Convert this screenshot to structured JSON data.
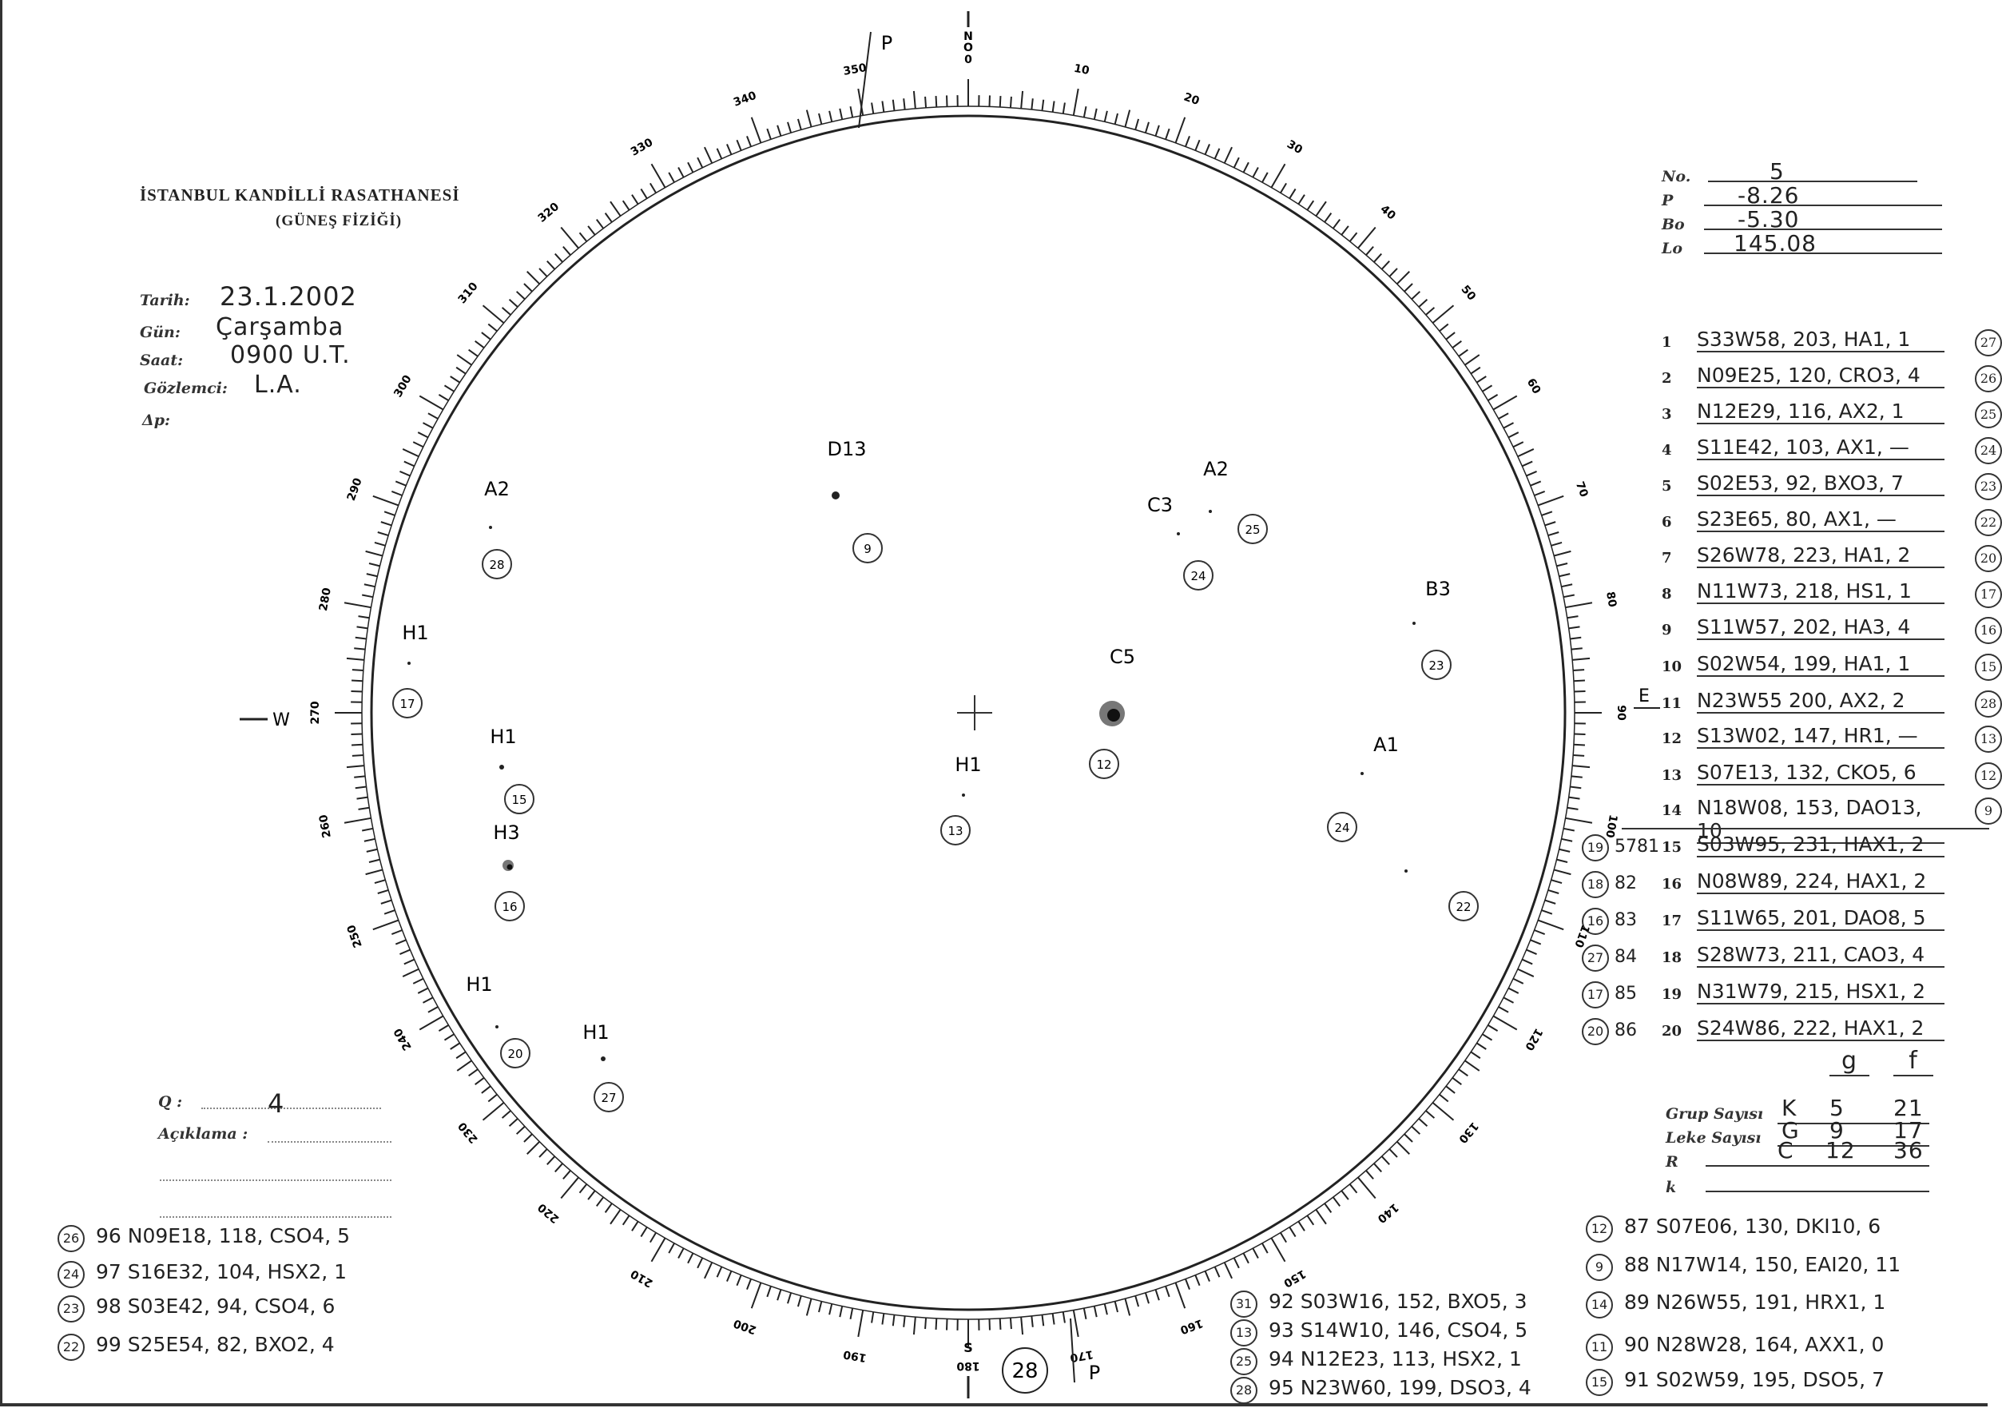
{
  "header": {
    "title": "İSTANBUL KANDİLLİ RASATHANESİ",
    "subtitle": "(GÜNEŞ FİZİĞİ)"
  },
  "observation": {
    "date_label": "Tarih:",
    "date": "23.1.2002",
    "day_label": "Gün:",
    "day": "Çarşamba",
    "time_label": "Saat:",
    "time": "0900 U.T.",
    "observer_label": "Gözlemci:",
    "observer": "L.A.",
    "dp_label": "Δp:"
  },
  "params": {
    "no_label": "No.",
    "no": "5",
    "p_label": "P",
    "p": "-8.26",
    "bo_label": "Bo",
    "bo": "-5.30",
    "lo_label": "Lo",
    "lo": "145.08"
  },
  "groups": [
    {
      "n": "1",
      "text": "S33W58, 203, HA1, 1",
      "circle": "27"
    },
    {
      "n": "2",
      "text": "N09E25, 120, CRO3, 4",
      "circle": "26"
    },
    {
      "n": "3",
      "text": "N12E29, 116, AX2, 1",
      "circle": "25"
    },
    {
      "n": "4",
      "text": "S11E42, 103, AX1, —",
      "circle": "24"
    },
    {
      "n": "5",
      "text": "S02E53, 92, BXO3, 7",
      "circle": "23"
    },
    {
      "n": "6",
      "text": "S23E65, 80, AX1, —",
      "circle": "22"
    },
    {
      "n": "7",
      "text": "S26W78, 223, HA1, 2",
      "circle": "20"
    },
    {
      "n": "8",
      "text": "N11W73, 218, HS1, 1",
      "circle": "17"
    },
    {
      "n": "9",
      "text": "S11W57, 202, HA3, 4",
      "circle": "16"
    },
    {
      "n": "10",
      "text": "S02W54, 199, HA1, 1",
      "circle": "15"
    },
    {
      "n": "11",
      "text": "N23W55 200, AX2, 2",
      "circle": "28"
    },
    {
      "n": "12",
      "text": "S13W02, 147, HR1, —",
      "circle": "13"
    },
    {
      "n": "13",
      "text": "S07E13, 132, CKO5, 6",
      "circle": "12"
    },
    {
      "n": "14",
      "text": "N18W08, 153, DAO13, 10",
      "circle": "9"
    },
    {
      "n": "15",
      "text": "S03W95, 231, HAX1, 2",
      "pre_circle": "19",
      "pre": "5781"
    },
    {
      "n": "16",
      "text": "N08W89, 224, HAX1, 2",
      "pre_circle": "18",
      "pre": "82"
    },
    {
      "n": "17",
      "text": "S11W65, 201, DAO8, 5",
      "pre_circle": "16",
      "pre": "83"
    },
    {
      "n": "18",
      "text": "S28W73, 211, CAO3, 4",
      "pre_circle": "27",
      "pre": "84"
    },
    {
      "n": "19",
      "text": "N31W79, 215, HSX1, 2",
      "pre_circle": "17",
      "pre": "85"
    },
    {
      "n": "20",
      "text": "S24W86, 222, HAX1, 2",
      "pre_circle": "20",
      "pre": "86"
    }
  ],
  "counts": {
    "col_g": "g",
    "col_f": "f",
    "group_label": "Grup Sayısı",
    "group_letter": "K",
    "group_g": "5",
    "group_f": "21",
    "spot_label": "Leke Sayısı",
    "spot_letter": "G",
    "spot_g": "9",
    "spot_f": "17",
    "r_label": "R",
    "r_letter": "C",
    "r_g": "12",
    "r_f": "36",
    "k_label": "k"
  },
  "quality": {
    "q_label": "Q :",
    "q": "4",
    "remarks_label": "Açıklama :"
  },
  "notes_left": [
    {
      "circle": "26",
      "text": "96 N09E18, 118, CSO4, 5"
    },
    {
      "circle": "24",
      "text": "97 S16E32, 104, HSX2, 1"
    },
    {
      "circle": "23",
      "text": "98 S03E42, 94, CSO4, 6"
    },
    {
      "circle": "22",
      "text": "99 S25E54, 82, BXO2, 4"
    }
  ],
  "notes_middle": [
    {
      "circle": "31",
      "text": "92 S03W16, 152, BXO5, 3"
    },
    {
      "circle": "13",
      "text": "93 S14W10, 146, CSO4, 5"
    },
    {
      "circle": "25",
      "text": "94 N12E23, 113, HSX2, 1"
    },
    {
      "circle": "28",
      "text": "95 N23W60, 199, DSO3, 4"
    }
  ],
  "notes_right": [
    {
      "circle": "12",
      "text": "87 S07E06, 130, DKI10, 6"
    },
    {
      "circle": "9",
      "text": "88 N17W14, 150, EAI20, 11"
    },
    {
      "circle": "14",
      "text": "89 N26W55, 191, HRX1, 1"
    },
    {
      "circle": "11",
      "text": "90 N28W28, 164, AXX1, 0"
    },
    {
      "circle": "15",
      "text": "91 S02W59, 195, DSO5, 7"
    }
  ],
  "disk": {
    "north": "N",
    "o": "O",
    "south": "S",
    "west": "W",
    "east": "E",
    "p_top": "P",
    "p_bottom": "P",
    "bottom_circle": "28",
    "scale_labels": [
      "0",
      "10",
      "20",
      "30",
      "40",
      "50",
      "60",
      "70",
      "80",
      "90",
      "100",
      "110",
      "120",
      "130",
      "140",
      "150",
      "160",
      "170",
      "180",
      "190",
      "200",
      "210",
      "220",
      "230",
      "240",
      "250",
      "260",
      "270",
      "280",
      "290",
      "300",
      "310",
      "320",
      "330",
      "340",
      "350"
    ],
    "features": [
      {
        "label": "D13",
        "circle": "9"
      },
      {
        "label": "A2",
        "circle": "28"
      },
      {
        "label": "C3",
        "circle": "24"
      },
      {
        "label": "A2",
        "circle": "25"
      },
      {
        "label": "B3",
        "circle": "23"
      },
      {
        "label": "H1",
        "circle": "17"
      },
      {
        "label": "C5",
        "circle": "12"
      },
      {
        "label": "H1",
        "circle": "15"
      },
      {
        "label": "H3",
        "circle": "16"
      },
      {
        "label": "H1",
        "circle": "13"
      },
      {
        "label": "A1",
        "circle": "24"
      },
      {
        "label": "",
        "circle": "22"
      },
      {
        "label": "H1",
        "circle": "20"
      },
      {
        "label": "H1",
        "circle": "27"
      }
    ]
  }
}
